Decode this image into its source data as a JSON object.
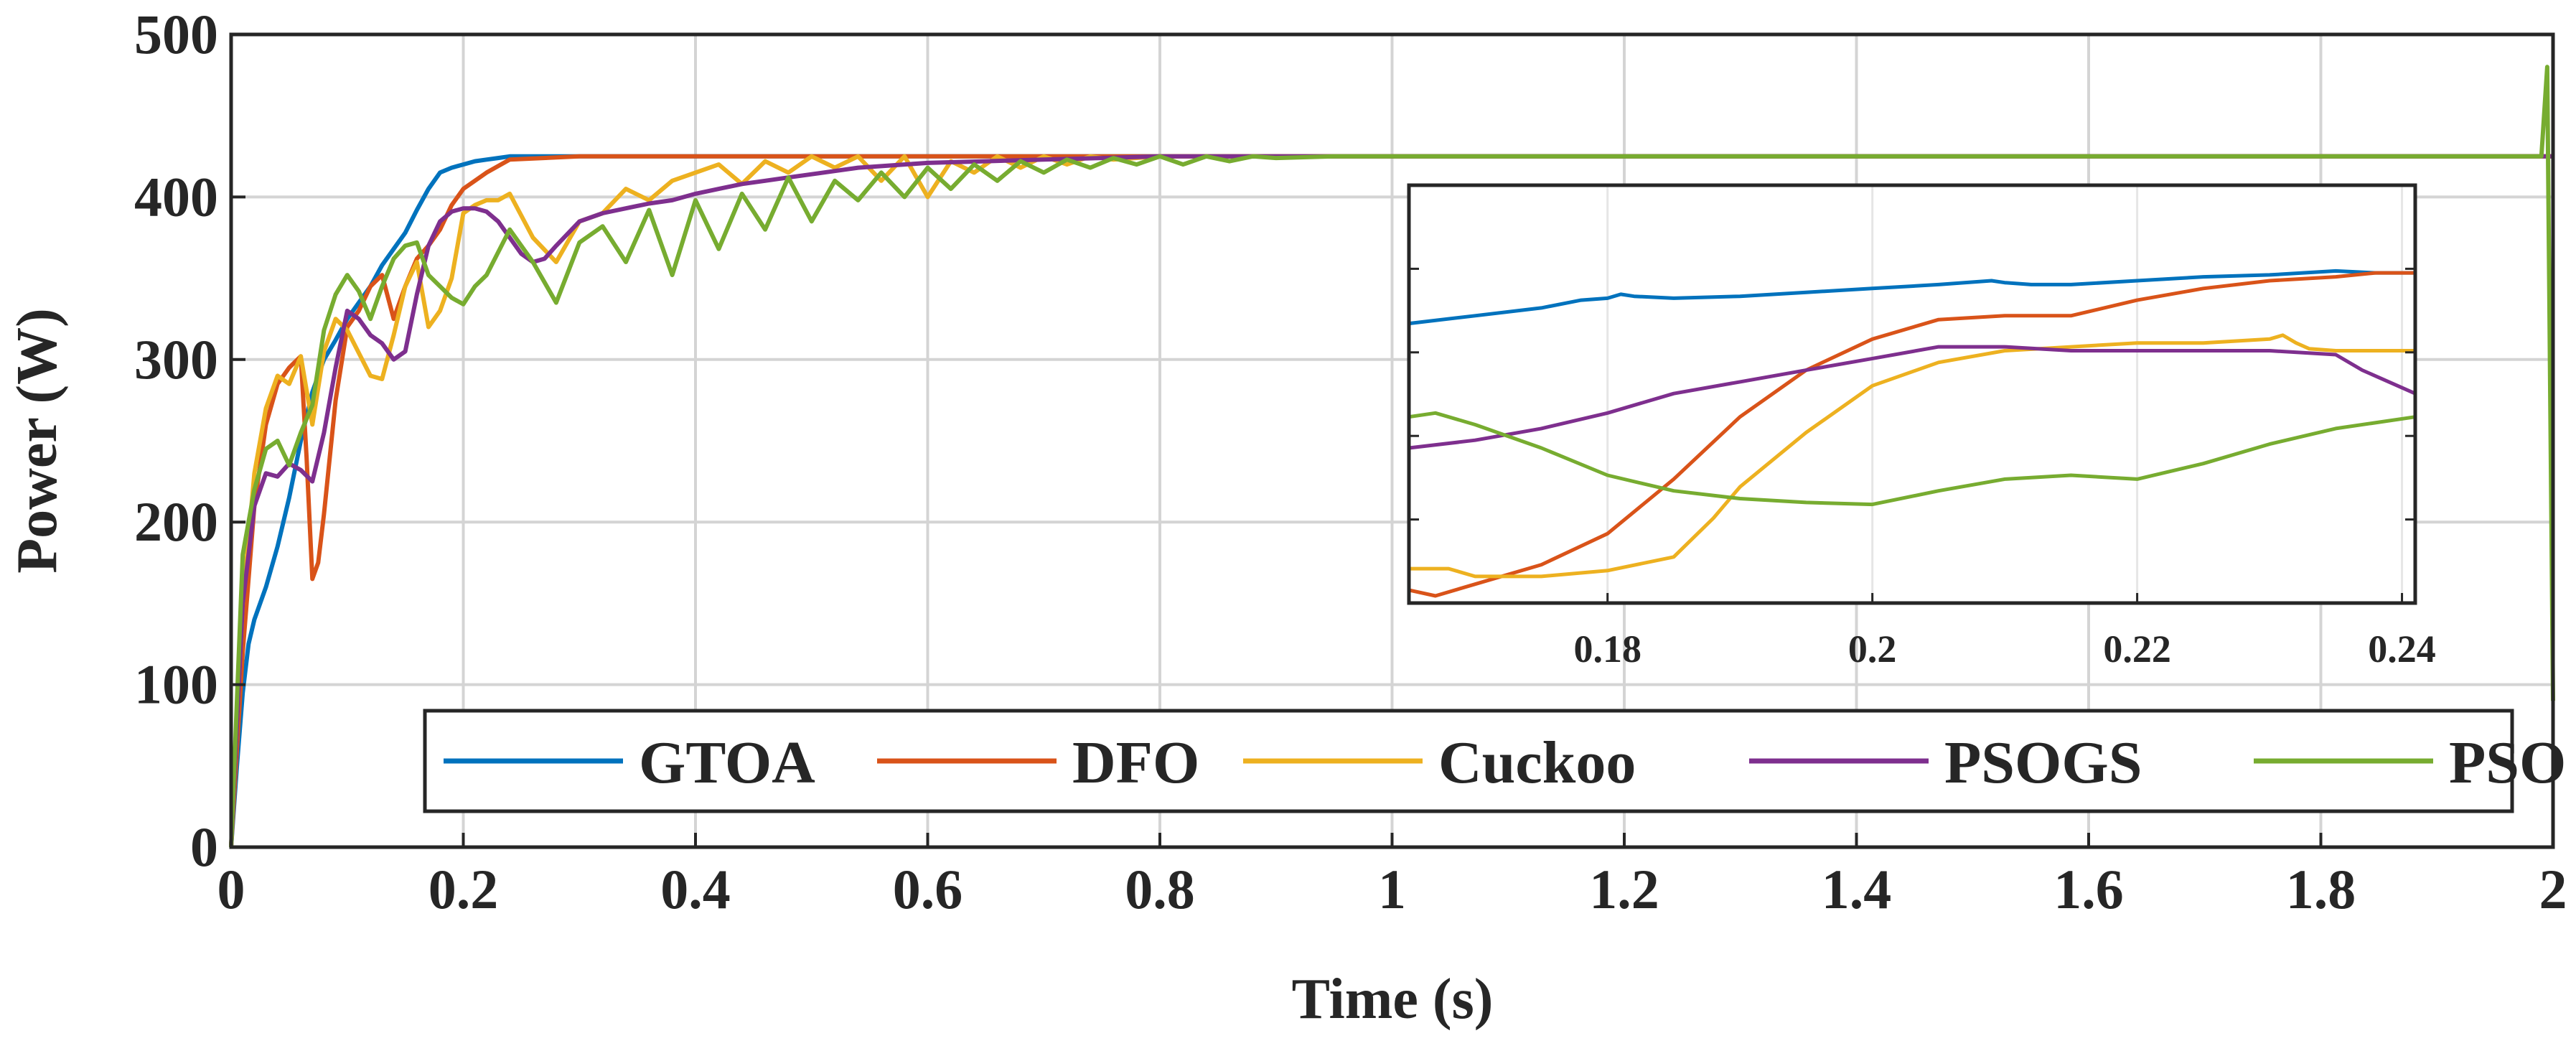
{
  "chart_data": {
    "type": "line",
    "xlabel": "Time (s)",
    "ylabel": "Power (W)",
    "xlim": [
      0,
      2
    ],
    "ylim": [
      0,
      500
    ],
    "xticks": [
      0,
      0.2,
      0.4,
      0.6,
      0.8,
      1,
      1.2,
      1.4,
      1.6,
      1.8,
      2
    ],
    "xtick_labels": [
      "0",
      "0.2",
      "0.4",
      "0.6",
      "0.8",
      "1",
      "1.2",
      "1.4",
      "1.6",
      "1.8",
      "2"
    ],
    "yticks": [
      0,
      100,
      200,
      300,
      400,
      500
    ],
    "ytick_labels": [
      "0",
      "100",
      "200",
      "300",
      "400",
      "500"
    ],
    "grid": true,
    "legend_position": "bottom, inside, single row",
    "series": [
      {
        "name": "GTOA",
        "color": "#0072BD",
        "x": [
          0,
          0.005,
          0.01,
          0.015,
          0.02,
          0.03,
          0.04,
          0.05,
          0.06,
          0.07,
          0.08,
          0.09,
          0.1,
          0.11,
          0.12,
          0.13,
          0.14,
          0.15,
          0.16,
          0.17,
          0.18,
          0.19,
          0.2,
          0.21,
          0.22,
          0.23,
          0.24,
          0.26,
          0.3,
          1.99,
          1.995,
          2
        ],
        "y": [
          0,
          50,
          95,
          125,
          140,
          160,
          185,
          215,
          250,
          280,
          300,
          312,
          325,
          335,
          345,
          358,
          368,
          378,
          392,
          405,
          415,
          418,
          420,
          422,
          423,
          424,
          425,
          425,
          425,
          425,
          425,
          425
        ]
      },
      {
        "name": "DFO",
        "color": "#D95319",
        "x": [
          0,
          0.01,
          0.02,
          0.03,
          0.04,
          0.05,
          0.06,
          0.065,
          0.07,
          0.075,
          0.08,
          0.09,
          0.1,
          0.11,
          0.12,
          0.13,
          0.14,
          0.15,
          0.16,
          0.17,
          0.18,
          0.19,
          0.2,
          0.22,
          0.24,
          0.3,
          1.99,
          2
        ],
        "y": [
          0,
          120,
          210,
          260,
          285,
          295,
          302,
          240,
          165,
          175,
          205,
          275,
          320,
          330,
          345,
          352,
          325,
          345,
          362,
          370,
          380,
          395,
          405,
          415,
          423,
          425,
          425,
          425
        ]
      },
      {
        "name": "Cuckoo",
        "color": "#EDB120",
        "x": [
          0,
          0.01,
          0.02,
          0.03,
          0.04,
          0.05,
          0.06,
          0.07,
          0.08,
          0.09,
          0.1,
          0.12,
          0.13,
          0.14,
          0.15,
          0.16,
          0.17,
          0.18,
          0.19,
          0.2,
          0.21,
          0.22,
          0.23,
          0.24,
          0.26,
          0.28,
          0.3,
          0.32,
          0.34,
          0.36,
          0.38,
          0.4,
          0.42,
          0.44,
          0.46,
          0.48,
          0.5,
          0.52,
          0.54,
          0.56,
          0.58,
          0.6,
          0.62,
          0.64,
          0.66,
          0.68,
          0.7,
          0.72,
          0.74,
          0.76,
          0.8,
          1.99,
          2
        ],
        "y": [
          0,
          150,
          230,
          270,
          290,
          285,
          302,
          260,
          305,
          325,
          318,
          290,
          288,
          315,
          345,
          360,
          320,
          330,
          350,
          390,
          395,
          398,
          398,
          402,
          375,
          360,
          385,
          390,
          405,
          398,
          410,
          415,
          420,
          408,
          422,
          415,
          425,
          418,
          425,
          410,
          425,
          400,
          422,
          415,
          425,
          418,
          425,
          420,
          425,
          423,
          425,
          425,
          425
        ]
      },
      {
        "name": "PSOGS",
        "color": "#7E2F8E",
        "x": [
          0,
          0.01,
          0.02,
          0.03,
          0.04,
          0.05,
          0.06,
          0.07,
          0.08,
          0.09,
          0.1,
          0.11,
          0.12,
          0.13,
          0.14,
          0.15,
          0.16,
          0.17,
          0.18,
          0.19,
          0.2,
          0.21,
          0.22,
          0.23,
          0.24,
          0.25,
          0.26,
          0.27,
          0.28,
          0.3,
          0.32,
          0.34,
          0.36,
          0.38,
          0.4,
          0.42,
          0.44,
          0.46,
          0.48,
          0.5,
          0.52,
          0.54,
          0.56,
          0.58,
          0.6,
          0.65,
          0.7,
          0.75,
          0.8,
          1.99,
          2
        ],
        "y": [
          0,
          150,
          210,
          230,
          228,
          236,
          232,
          225,
          255,
          295,
          330,
          325,
          315,
          310,
          300,
          305,
          340,
          370,
          385,
          391,
          393,
          393,
          391,
          385,
          375,
          365,
          360,
          362,
          370,
          385,
          390,
          393,
          396,
          398,
          402,
          405,
          408,
          410,
          412,
          414,
          416,
          418,
          419,
          420,
          421,
          422,
          423,
          424,
          425,
          425,
          425
        ]
      },
      {
        "name": "PSO",
        "color": "#77AC30",
        "x": [
          0,
          0.01,
          0.02,
          0.03,
          0.04,
          0.05,
          0.06,
          0.07,
          0.08,
          0.09,
          0.1,
          0.11,
          0.12,
          0.13,
          0.14,
          0.15,
          0.16,
          0.17,
          0.18,
          0.19,
          0.2,
          0.21,
          0.22,
          0.24,
          0.26,
          0.28,
          0.3,
          0.32,
          0.34,
          0.36,
          0.38,
          0.4,
          0.42,
          0.44,
          0.46,
          0.48,
          0.5,
          0.52,
          0.54,
          0.56,
          0.58,
          0.6,
          0.62,
          0.64,
          0.66,
          0.68,
          0.7,
          0.72,
          0.74,
          0.76,
          0.78,
          0.8,
          0.82,
          0.84,
          0.86,
          0.88,
          0.9,
          0.95,
          1.0,
          1.99,
          1.995,
          2
        ],
        "y": [
          0,
          180,
          220,
          245,
          250,
          235,
          255,
          272,
          318,
          340,
          352,
          342,
          325,
          345,
          362,
          370,
          372,
          352,
          345,
          338,
          334,
          345,
          352,
          380,
          360,
          335,
          372,
          382,
          360,
          392,
          352,
          398,
          368,
          402,
          380,
          412,
          385,
          410,
          398,
          415,
          400,
          418,
          405,
          420,
          410,
          422,
          415,
          423,
          418,
          424,
          420,
          425,
          420,
          425,
          422,
          425,
          424,
          425,
          425,
          425,
          480,
          90
        ]
      }
    ],
    "inset": {
      "xlim": [
        0.165,
        0.241
      ],
      "xticks": [
        0.18,
        0.2,
        0.22,
        0.24
      ],
      "xtick_labels": [
        "0.18",
        "0.2",
        "0.22",
        "0.24"
      ],
      "y_units": "normalized 0-1 within inset axes",
      "series": [
        {
          "name": "GTOA",
          "x": [
            0.165,
            0.17,
            0.175,
            0.178,
            0.18,
            0.181,
            0.182,
            0.185,
            0.19,
            0.195,
            0.2,
            0.205,
            0.209,
            0.21,
            0.212,
            0.215,
            0.22,
            0.225,
            0.23,
            0.235,
            0.238,
            0.241
          ],
          "y": [
            0.7,
            0.72,
            0.74,
            0.76,
            0.765,
            0.775,
            0.77,
            0.765,
            0.77,
            0.78,
            0.79,
            0.8,
            0.81,
            0.805,
            0.8,
            0.8,
            0.81,
            0.82,
            0.825,
            0.835,
            0.83,
            0.83
          ]
        },
        {
          "name": "DFO",
          "x": [
            0.165,
            0.167,
            0.17,
            0.175,
            0.18,
            0.185,
            0.19,
            0.195,
            0.2,
            0.205,
            0.21,
            0.215,
            0.22,
            0.225,
            0.23,
            0.235,
            0.238,
            0.241
          ],
          "y": [
            0.015,
            0.0,
            0.03,
            0.08,
            0.16,
            0.3,
            0.46,
            0.58,
            0.66,
            0.71,
            0.72,
            0.72,
            0.76,
            0.79,
            0.81,
            0.82,
            0.83,
            0.83
          ]
        },
        {
          "name": "Cuckoo",
          "x": [
            0.165,
            0.168,
            0.17,
            0.175,
            0.18,
            0.185,
            0.188,
            0.19,
            0.195,
            0.2,
            0.205,
            0.21,
            0.22,
            0.225,
            0.23,
            0.231,
            0.232,
            0.233,
            0.235,
            0.241
          ],
          "y": [
            0.07,
            0.07,
            0.05,
            0.05,
            0.065,
            0.1,
            0.2,
            0.28,
            0.42,
            0.54,
            0.6,
            0.63,
            0.65,
            0.65,
            0.66,
            0.67,
            0.65,
            0.635,
            0.63,
            0.63
          ]
        },
        {
          "name": "PSOGS",
          "x": [
            0.165,
            0.17,
            0.175,
            0.18,
            0.185,
            0.19,
            0.195,
            0.2,
            0.205,
            0.21,
            0.215,
            0.22,
            0.225,
            0.23,
            0.235,
            0.237,
            0.241
          ],
          "y": [
            0.38,
            0.4,
            0.43,
            0.47,
            0.52,
            0.55,
            0.58,
            0.61,
            0.64,
            0.64,
            0.63,
            0.63,
            0.63,
            0.63,
            0.62,
            0.58,
            0.52
          ]
        },
        {
          "name": "PSO",
          "x": [
            0.165,
            0.167,
            0.17,
            0.175,
            0.18,
            0.185,
            0.19,
            0.195,
            0.2,
            0.205,
            0.21,
            0.215,
            0.22,
            0.225,
            0.23,
            0.235,
            0.241
          ],
          "y": [
            0.46,
            0.47,
            0.44,
            0.38,
            0.31,
            0.27,
            0.25,
            0.24,
            0.235,
            0.27,
            0.3,
            0.31,
            0.3,
            0.34,
            0.39,
            0.43,
            0.46
          ]
        }
      ]
    }
  }
}
